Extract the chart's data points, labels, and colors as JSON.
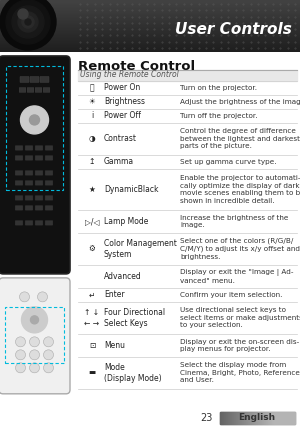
{
  "bg_color": "#ffffff",
  "header_bg_dark": "#3a3a3a",
  "header_bg_mid": "#555555",
  "header_text": "User Controls",
  "header_text_color": "#ffffff",
  "section_title": "Remote Control",
  "table_header": "Using the Remote Control",
  "footer_page": "23",
  "footer_label": "English",
  "rows": [
    {
      "icon": "⏻",
      "name": "Power On",
      "desc": "Turn on the projector."
    },
    {
      "icon": "☀",
      "name": "Brightness",
      "desc": "Adjust the brightness of the image."
    },
    {
      "icon": "i",
      "name": "Power Off",
      "desc": "Turn off the projector."
    },
    {
      "icon": "◑",
      "name": "Contrast",
      "desc": "Control the degree of difference\nbetween the lightest and darkest\nparts of the picture."
    },
    {
      "icon": "↥",
      "name": "Gamma",
      "desc": "Set up gamma curve type."
    },
    {
      "icon": "★",
      "name": "DynamicBlack",
      "desc": "Enable the projector to automati-\ncally optimize the display of dark\nmovie scenes enabling them to be\nshown in incredible detail."
    },
    {
      "icon": "▷/◁",
      "name": "Lamp Mode",
      "desc": "Increase the brightness of the\nimage."
    },
    {
      "icon": "⚙",
      "name": "Color Management\nSystem",
      "desc": "Select one of the colors (R/G/B/\nC/M/Y) to adjust its x/y offset and\nbrightness."
    },
    {
      "icon": "",
      "name": "Advanced",
      "desc": "Display or exit the \"Image | Ad-\nvanced\" menu."
    },
    {
      "icon": "↵",
      "name": "Enter",
      "desc": "Confirm your item selection."
    },
    {
      "icon": "↑ ↓\n← →",
      "name": "Four Directional\nSelect Keys",
      "desc": "Use directional select keys to\nselect items or make adjustments\nto your selection."
    },
    {
      "icon": "⊡",
      "name": "Menu",
      "desc": "Display or exit the on-screen dis-\nplay menus for projector."
    },
    {
      "icon": "▬",
      "name": "Mode\n(Display Mode)",
      "desc": "Select the display mode from\nCinema, Bright, Photo, Reference\nand User."
    }
  ],
  "name_color": "#222222",
  "desc_color": "#333333",
  "table_header_color": "#555555",
  "section_title_color": "#111111",
  "line_color": "#cccccc",
  "table_header_bg": "#e8e8e8"
}
